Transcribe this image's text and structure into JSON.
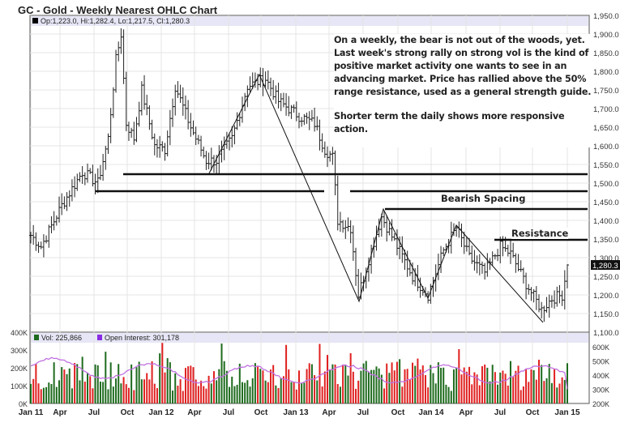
{
  "title": "GC - Gold - Weekly Nearest OHLC Chart",
  "legend": {
    "ohlc": "Op:1,223.0, Hi:1,282.4, Lo:1,217.5, Cl:1,280.3",
    "vol": "Vol: 225,866",
    "oi": "Open Interest: 301,178"
  },
  "last_price_tag": "1,280.3",
  "annotation": {
    "p1": "On a weekly, the bear is not out of the woods, yet. Last week's strong rally on strong vol is the kind of positive market activity one wants to see in an advancing market.  Price has rallied above the 50% range resistance, used as a general strength guide.",
    "p2": "Shorter term the daily shows more responsive action."
  },
  "labels": {
    "bearish": "Bearish Spacing",
    "resistance": "Resistance"
  },
  "colors": {
    "up": "#1e6b1e",
    "down": "#e02020",
    "oi": "#c070e0",
    "line": "#111111"
  },
  "chart_data": {
    "type": "ohlc",
    "title": "GC - Gold - Weekly Nearest OHLC Chart",
    "price_ticks": [
      "1,950.0",
      "1,900.0",
      "1,850.0",
      "1,800.0",
      "1,750.0",
      "1,700.0",
      "1,650.0",
      "1,600.0",
      "1,550.0",
      "1,500.0",
      "1,450.0",
      "1,400.0",
      "1,350.0",
      "1,300.0",
      "1,250.0",
      "1,200.0",
      "1,150.0",
      "1,100.0"
    ],
    "ylim": [
      1100,
      1950
    ],
    "x_ticks": [
      "Jan 11",
      "Apr",
      "Jul",
      "Oct",
      "Jan 12",
      "Apr",
      "Jul",
      "Oct",
      "Jan 13",
      "Apr",
      "Jul",
      "Oct",
      "Jan 14",
      "Apr",
      "Jul",
      "Oct",
      "Jan 15"
    ],
    "weeks": 209,
    "close_keypoints": [
      [
        0,
        1360
      ],
      [
        4,
        1330
      ],
      [
        12,
        1440
      ],
      [
        20,
        1530
      ],
      [
        26,
        1500
      ],
      [
        30,
        1620
      ],
      [
        33,
        1830
      ],
      [
        35,
        1900
      ],
      [
        37,
        1660
      ],
      [
        40,
        1620
      ],
      [
        43,
        1750
      ],
      [
        48,
        1600
      ],
      [
        52,
        1590
      ],
      [
        56,
        1760
      ],
      [
        62,
        1650
      ],
      [
        68,
        1560
      ],
      [
        72,
        1560
      ],
      [
        78,
        1620
      ],
      [
        84,
        1760
      ],
      [
        91,
        1780
      ],
      [
        96,
        1720
      ],
      [
        104,
        1680
      ],
      [
        110,
        1660
      ],
      [
        114,
        1590
      ],
      [
        117,
        1570
      ],
      [
        119,
        1400
      ],
      [
        124,
        1380
      ],
      [
        127,
        1200
      ],
      [
        132,
        1320
      ],
      [
        136,
        1410
      ],
      [
        142,
        1330
      ],
      [
        148,
        1250
      ],
      [
        154,
        1200
      ],
      [
        160,
        1320
      ],
      [
        165,
        1380
      ],
      [
        170,
        1300
      ],
      [
        176,
        1260
      ],
      [
        182,
        1330
      ],
      [
        186,
        1310
      ],
      [
        192,
        1230
      ],
      [
        198,
        1160
      ],
      [
        202,
        1190
      ],
      [
        206,
        1200
      ],
      [
        208,
        1280
      ]
    ],
    "last_bar": {
      "open": 1223.0,
      "high": 1282.4,
      "low": 1217.5,
      "close": 1280.3
    },
    "support_resistance_levels": [
      1525,
      1478,
      1432,
      1348
    ],
    "volume_ticks": [
      "400K",
      "300K",
      "200K",
      "100K",
      "0K"
    ],
    "oi_ticks": [
      "600K",
      "500K",
      "400K",
      "300K",
      "200K"
    ],
    "last_volume": 225866,
    "last_open_interest": 301178
  }
}
